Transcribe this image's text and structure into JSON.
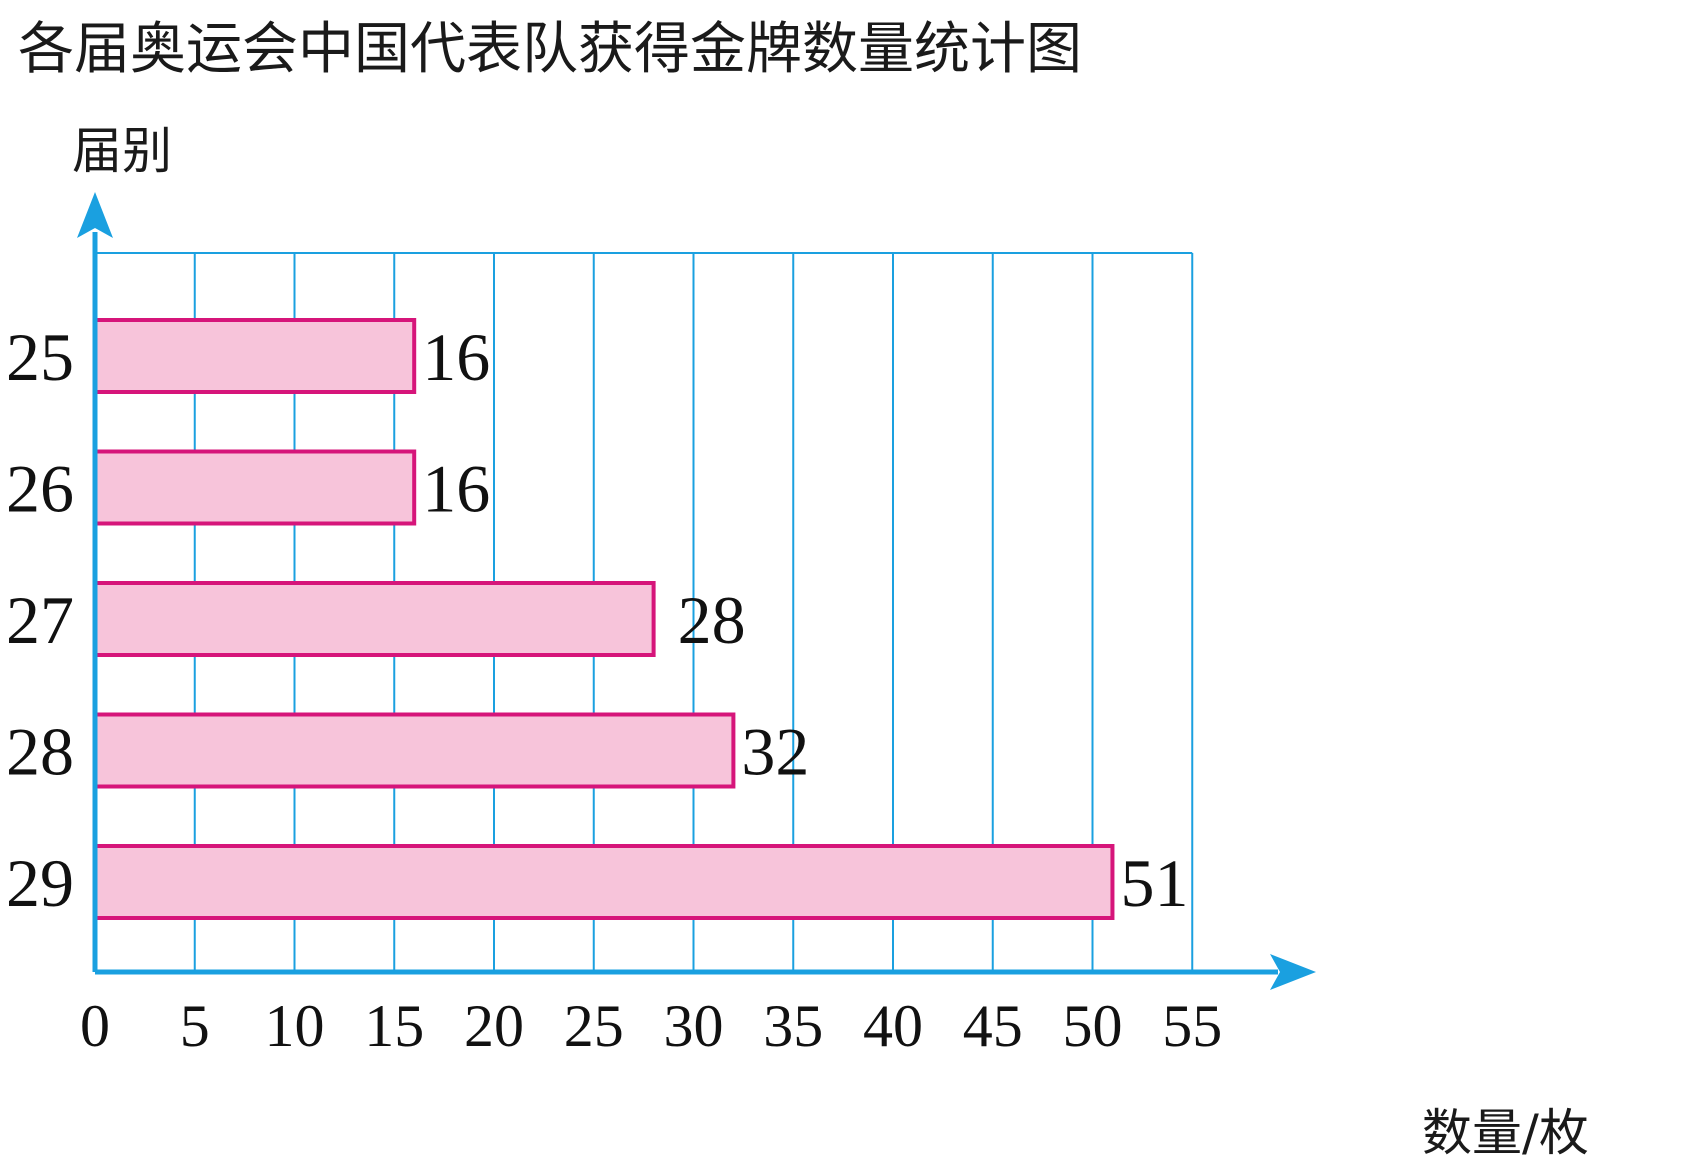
{
  "title": "各届奥运会中国代表队获得金牌数量统计图",
  "colors": {
    "axis": "#1aa0e0",
    "grid": "#1aa0e0",
    "bar_fill": "#f7c4da",
    "bar_stroke": "#d6157a"
  },
  "chart_data": {
    "type": "bar",
    "orientation": "horizontal",
    "title": "各届奥运会中国代表队获得金牌数量统计图",
    "ylabel": "届别",
    "xlabel": "数量/枚",
    "categories": [
      "25",
      "26",
      "27",
      "28",
      "29"
    ],
    "values": [
      16,
      16,
      28,
      32,
      51
    ],
    "xlim": [
      0,
      55
    ],
    "xticks": [
      "0",
      "5",
      "10",
      "15",
      "20",
      "25",
      "30",
      "35",
      "40",
      "45",
      "50",
      "55"
    ],
    "value_labels": [
      "16",
      "16",
      "28",
      "32",
      "51"
    ],
    "grid": true
  }
}
